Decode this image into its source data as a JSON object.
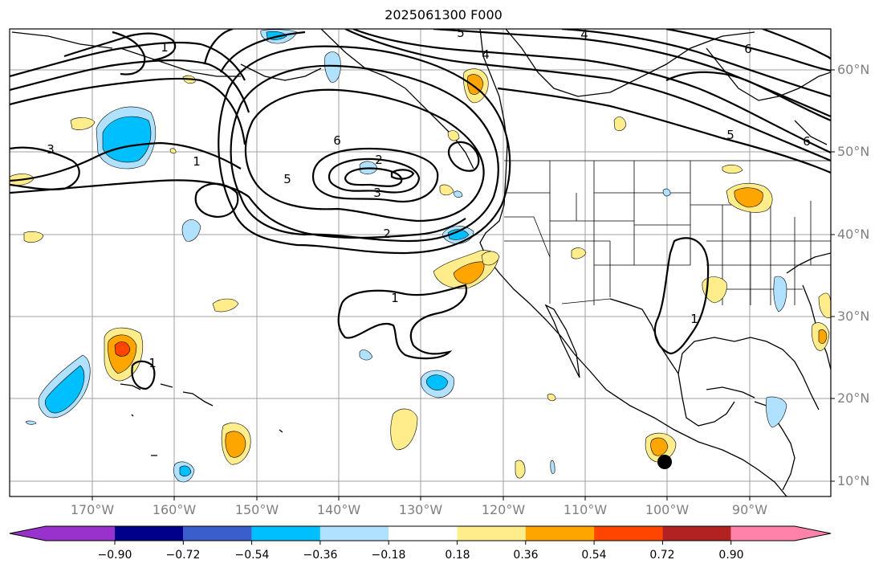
{
  "title": "2025061300 F000",
  "lat_labels": [
    "60°N",
    "50°N",
    "40°N",
    "30°N",
    "20°N",
    "10°N"
  ],
  "lon_labels": [
    "170°W",
    "160°W",
    "150°W",
    "140°W",
    "130°W",
    "120°W",
    "110°W",
    "100°W",
    "90°W"
  ],
  "contour_labels": [
    "1",
    "2",
    "3",
    "4",
    "5",
    "6",
    "1",
    "2",
    "3",
    "4",
    "5",
    "6",
    "5",
    "6",
    "1",
    "1",
    "1"
  ],
  "colorbar": {
    "ticks": [
      "−0.90",
      "−0.72",
      "−0.54",
      "−0.36",
      "−0.18",
      "0.18",
      "0.36",
      "0.54",
      "0.72",
      "0.90"
    ],
    "colors": [
      "#9932cc",
      "#00008b",
      "#3a5fcd",
      "#00bfff",
      "#b0e2ff",
      "#ffffff",
      "#ffec8b",
      "#ffa500",
      "#ff4500",
      "#b22222",
      "#ff82ab"
    ]
  }
}
